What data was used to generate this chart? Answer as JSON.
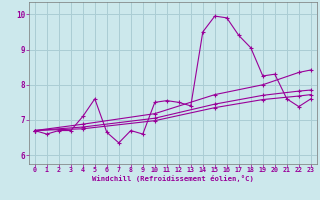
{
  "title": "",
  "xlabel": "Windchill (Refroidissement éolien,°C)",
  "ylabel": "",
  "xlim": [
    -0.5,
    23.5
  ],
  "ylim": [
    5.75,
    10.35
  ],
  "yticks": [
    6,
    7,
    8,
    9,
    10
  ],
  "xticks": [
    0,
    1,
    2,
    3,
    4,
    5,
    6,
    7,
    8,
    9,
    10,
    11,
    12,
    13,
    14,
    15,
    16,
    17,
    18,
    19,
    20,
    21,
    22,
    23
  ],
  "bg_color": "#cce8ec",
  "grid_color": "#aacdd4",
  "line_color": "#990099",
  "jagged_x": [
    0,
    1,
    2,
    3,
    4,
    5,
    6,
    7,
    8,
    9,
    10,
    11,
    12,
    13,
    14,
    15,
    16,
    17,
    18,
    19,
    20,
    21,
    22,
    23
  ],
  "jagged_y": [
    6.7,
    6.6,
    6.7,
    6.7,
    7.1,
    7.6,
    6.65,
    6.35,
    6.7,
    6.6,
    7.5,
    7.55,
    7.5,
    7.4,
    9.5,
    9.95,
    9.9,
    9.4,
    9.05,
    8.25,
    8.3,
    7.6,
    7.38,
    7.6
  ],
  "line2_x": [
    0,
    4,
    10,
    15,
    19,
    22,
    23
  ],
  "line2_y": [
    6.7,
    6.88,
    7.18,
    7.72,
    8.0,
    8.35,
    8.42
  ],
  "line3_x": [
    0,
    4,
    10,
    15,
    19,
    22,
    23
  ],
  "line3_y": [
    6.7,
    6.8,
    7.05,
    7.45,
    7.7,
    7.82,
    7.85
  ],
  "line4_x": [
    0,
    4,
    10,
    15,
    19,
    22,
    23
  ],
  "line4_y": [
    6.7,
    6.75,
    6.98,
    7.35,
    7.58,
    7.68,
    7.72
  ]
}
